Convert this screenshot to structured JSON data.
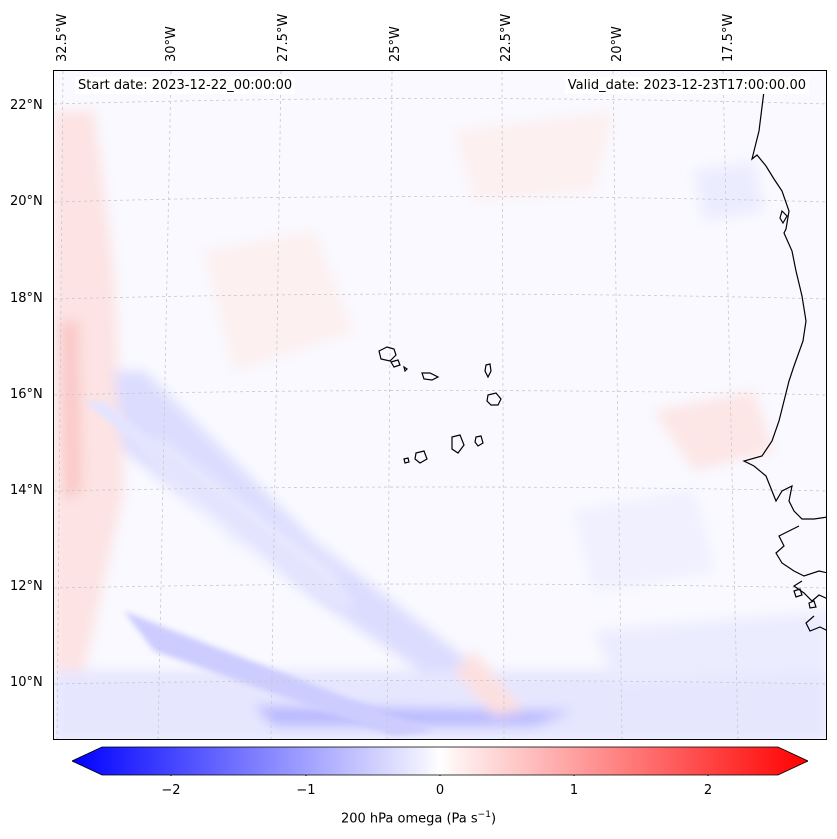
{
  "header": {
    "start_date": "Start date: 2023-12-22_00:00:00",
    "valid_date": "Valid_date: 2023-12-23T17:00:00.00"
  },
  "axes": {
    "longitude_labels": [
      "32.5°W",
      "30°W",
      "27.5°W",
      "25°W",
      "22.5°W",
      "20°W",
      "17.5°W"
    ],
    "latitude_labels": [
      "22°N",
      "20°N",
      "18°N",
      "16°N",
      "14°N",
      "12°N",
      "10°N"
    ]
  },
  "map": {
    "field": "200 hPa omega",
    "features": [
      "coastline-west-africa",
      "cape-verde-islands",
      "gridlines"
    ]
  },
  "colorbar": {
    "tick_labels": [
      "−2",
      "−1",
      "0",
      "1",
      "2"
    ],
    "tick_values": [
      -2,
      -1,
      0,
      1,
      2
    ],
    "range": [
      -2.5,
      2.5
    ],
    "title_prefix": "200 hPa omega (Pa s",
    "title_exp": "−1",
    "title_suffix": ")",
    "colors": {
      "negative": "#0000ff",
      "zero": "#ffffff",
      "positive": "#ff0000"
    }
  }
}
